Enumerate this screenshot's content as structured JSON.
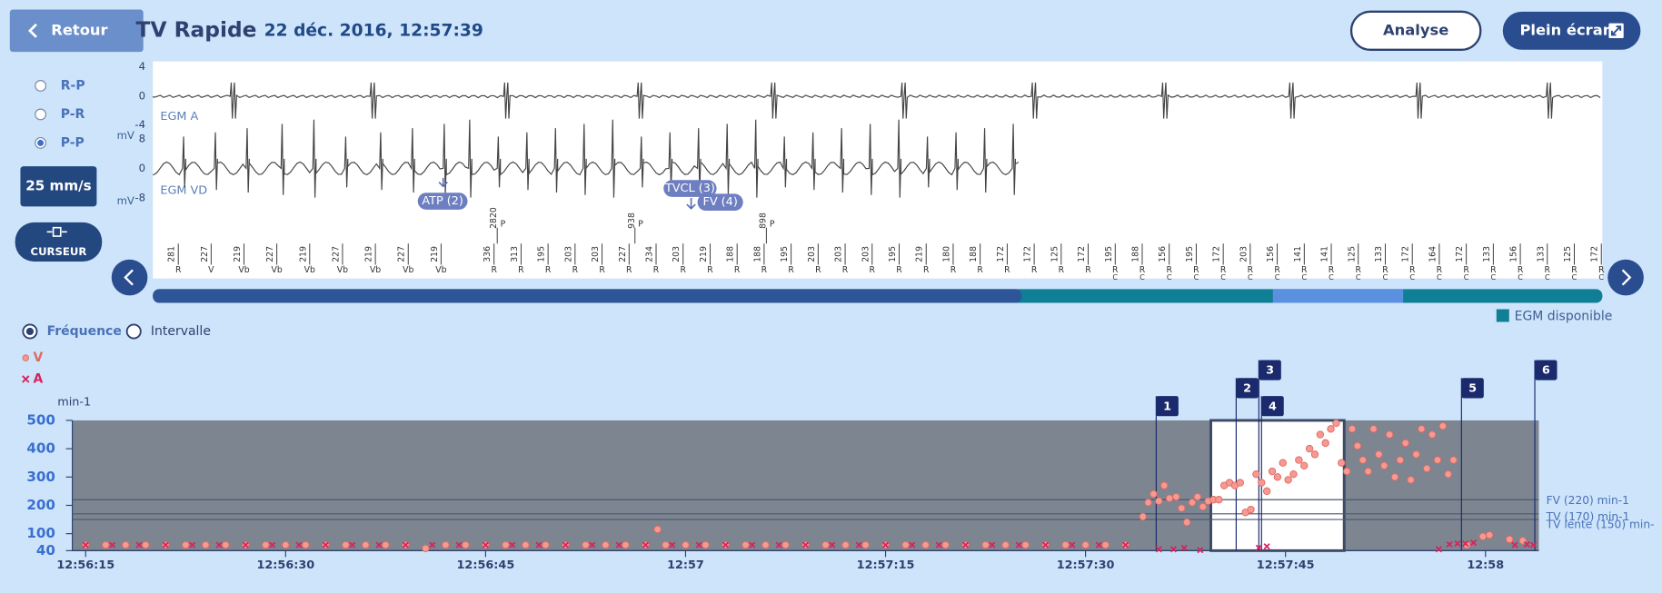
{
  "header": {
    "back": "Retour",
    "title": "TV Rapide",
    "datetime": "22 déc. 2016, 12:57:39",
    "analyse": "Analyse",
    "fullscreen": "Plein écran"
  },
  "controls": {
    "modes": [
      "R-P",
      "P-R",
      "P-P"
    ],
    "selected_mode": 2,
    "speed": "25 mm/s",
    "cursor": "CURSEUR"
  },
  "egm": {
    "unit": "mV",
    "channels": [
      {
        "label": "EGM A",
        "ticks": [
          4,
          0,
          -4
        ]
      },
      {
        "label": "EGM VD",
        "ticks": [
          8,
          0,
          -8
        ]
      }
    ],
    "annotations": [
      "ATP (2)",
      "TVCL (3)",
      "FV (4)"
    ],
    "p_markers": [
      [
        2820,
        "P"
      ],
      [
        938,
        "P"
      ],
      [
        898,
        "P"
      ]
    ],
    "markers": [
      [
        281,
        "R"
      ],
      [
        227,
        "V"
      ],
      [
        219,
        "Vb"
      ],
      [
        227,
        "Vb"
      ],
      [
        219,
        "Vb"
      ],
      [
        227,
        "Vb"
      ],
      [
        219,
        "Vb"
      ],
      [
        227,
        "Vb"
      ],
      [
        219,
        "Vb"
      ],
      [
        336,
        "R"
      ],
      [
        313,
        "R"
      ],
      [
        195,
        "R"
      ],
      [
        203,
        "R"
      ],
      [
        203,
        "R"
      ],
      [
        227,
        "R"
      ],
      [
        234,
        "R"
      ],
      [
        203,
        "R"
      ],
      [
        219,
        "R"
      ],
      [
        188,
        "R"
      ],
      [
        188,
        "R"
      ],
      [
        195,
        "R"
      ],
      [
        203,
        "R"
      ],
      [
        203,
        "R"
      ],
      [
        203,
        "R"
      ],
      [
        195,
        "R"
      ],
      [
        219,
        "R"
      ],
      [
        180,
        "R"
      ],
      [
        188,
        "R"
      ],
      [
        172,
        "R"
      ],
      [
        172,
        "R"
      ],
      [
        125,
        "R"
      ],
      [
        172,
        "R"
      ],
      [
        195,
        "R",
        "C"
      ],
      [
        188,
        "R",
        "C"
      ],
      [
        156,
        "R",
        "C"
      ],
      [
        195,
        "R",
        "C"
      ],
      [
        172,
        "R",
        "C"
      ],
      [
        203,
        "R",
        "C"
      ],
      [
        156,
        "R",
        "C"
      ],
      [
        141,
        "R",
        "C"
      ],
      [
        141,
        "R",
        "C"
      ],
      [
        125,
        "R",
        "C"
      ],
      [
        133,
        "R",
        "C"
      ],
      [
        172,
        "R",
        "C"
      ],
      [
        164,
        "R",
        "C"
      ],
      [
        172,
        "R",
        "C"
      ],
      [
        133,
        "R",
        "C"
      ],
      [
        156,
        "R",
        "C"
      ],
      [
        133,
        "R",
        "C"
      ],
      [
        125,
        "R",
        "C"
      ],
      [
        172,
        "R",
        "C"
      ]
    ],
    "available": "EGM disponible"
  },
  "chart_data": {
    "type": "scatter",
    "modes": [
      "Fréquence",
      "Intervalle"
    ],
    "selected_mode": 0,
    "y_label": "min-1",
    "xlim": [
      -1,
      109
    ],
    "ylim": [
      40,
      500
    ],
    "xticks": [
      {
        "value": 0,
        "label": "12:56:15"
      },
      {
        "value": 15,
        "label": "12:56:30"
      },
      {
        "value": 30,
        "label": "12:56:45"
      },
      {
        "value": 45,
        "label": "12:57"
      },
      {
        "value": 60,
        "label": "12:57:15"
      },
      {
        "value": 75,
        "label": "12:57:30"
      },
      {
        "value": 90,
        "label": "12:57:45"
      },
      {
        "value": 105,
        "label": "12:58"
      }
    ],
    "yticks": [
      40,
      100,
      200,
      300,
      400,
      500
    ],
    "thresholds": [
      {
        "label": "FV (220) min-1",
        "value": 220
      },
      {
        "label": "TV (170) min-1",
        "value": 170
      },
      {
        "label": "TV lente (150) min-",
        "value": 150
      }
    ],
    "events": [
      {
        "label": "1",
        "x": 80.3
      },
      {
        "label": "2",
        "x": 86.3
      },
      {
        "label": "3",
        "x": 88.0
      },
      {
        "label": "4",
        "x": 88.2
      },
      {
        "label": "5",
        "x": 103.2
      },
      {
        "label": "6",
        "x": 108.7
      }
    ],
    "egm_window": [
      84.4,
      94.4
    ],
    "series": [
      {
        "name": "V",
        "color": "#f59a93",
        "marker": "circle",
        "x": [
          0,
          1.5,
          3,
          4.5,
          6,
          7.5,
          9,
          10.5,
          12,
          13.5,
          15,
          16.5,
          18,
          19.5,
          21,
          22.5,
          24,
          25.5,
          27,
          28.5,
          30,
          31.5,
          33,
          34.5,
          36,
          37.5,
          39,
          40.5,
          42,
          42.9,
          43.5,
          45,
          46.5,
          48,
          49.5,
          51,
          52.5,
          54,
          55.5,
          57,
          58.5,
          60,
          61.5,
          63,
          64.5,
          66,
          67.5,
          69,
          70.5,
          72,
          73.5,
          75,
          76.5,
          78,
          79.3,
          79.7,
          80.1,
          80.5,
          80.9,
          81.3,
          81.8,
          82.2,
          82.6,
          83.0,
          83.4,
          83.8,
          84.2,
          84.6,
          85.0,
          85.4,
          85.8,
          86.2,
          86.6,
          87.0,
          87.4,
          87.8,
          88.2,
          88.6,
          89.0,
          89.4,
          89.8,
          90.2,
          90.6,
          91.0,
          91.4,
          91.8,
          92.2,
          92.6,
          93.0,
          93.4,
          93.8,
          94.2,
          94.6,
          95.0,
          95.4,
          95.8,
          96.2,
          96.6,
          97.0,
          97.4,
          97.8,
          98.2,
          98.6,
          99.0,
          99.4,
          99.8,
          100.2,
          100.6,
          101.0,
          101.4,
          101.8,
          102.2,
          102.6,
          103.6,
          104.8,
          105.3,
          106.8,
          107.8
        ],
        "values": [
          60,
          60,
          60,
          60,
          60,
          60,
          60,
          60,
          60,
          60,
          60,
          60,
          60,
          60,
          60,
          60,
          60,
          48,
          60,
          60,
          60,
          60,
          60,
          60,
          60,
          60,
          60,
          60,
          60,
          115,
          60,
          60,
          60,
          60,
          60,
          60,
          60,
          60,
          60,
          60,
          60,
          60,
          60,
          60,
          60,
          60,
          60,
          60,
          60,
          60,
          60,
          60,
          60,
          60,
          160,
          210,
          240,
          215,
          270,
          225,
          230,
          190,
          140,
          210,
          230,
          195,
          215,
          220,
          220,
          270,
          280,
          270,
          280,
          175,
          185,
          310,
          280,
          250,
          320,
          300,
          350,
          290,
          310,
          360,
          340,
          400,
          380,
          450,
          420,
          470,
          490,
          350,
          320,
          470,
          410,
          360,
          320,
          470,
          380,
          340,
          450,
          300,
          360,
          420,
          290,
          380,
          470,
          330,
          450,
          360,
          480,
          310,
          360,
          60,
          90,
          95,
          80,
          75
        ]
      },
      {
        "name": "A",
        "color": "#d6245c",
        "marker": "x",
        "x": [
          0,
          2,
          4,
          6,
          8,
          10,
          12,
          14,
          16,
          18,
          20,
          22,
          24,
          26,
          28,
          30,
          32,
          34,
          36,
          38,
          40,
          42,
          44,
          46,
          48,
          50,
          52,
          54,
          56,
          58,
          60,
          62,
          64,
          66,
          68,
          70,
          72,
          74,
          76,
          78,
          80.5,
          81.6,
          82.4,
          83.6,
          88.0,
          88.6,
          101.5,
          102.3,
          102.9,
          103.5,
          104.1,
          107.2,
          108.1,
          108.6
        ],
        "values": [
          60,
          60,
          60,
          60,
          60,
          60,
          60,
          60,
          60,
          60,
          60,
          60,
          60,
          60,
          60,
          60,
          60,
          60,
          60,
          60,
          60,
          60,
          60,
          60,
          60,
          60,
          60,
          60,
          60,
          60,
          60,
          60,
          60,
          60,
          60,
          60,
          60,
          60,
          60,
          60,
          45,
          45,
          50,
          42,
          50,
          55,
          45,
          62,
          65,
          65,
          68,
          60,
          62,
          60
        ]
      }
    ]
  }
}
